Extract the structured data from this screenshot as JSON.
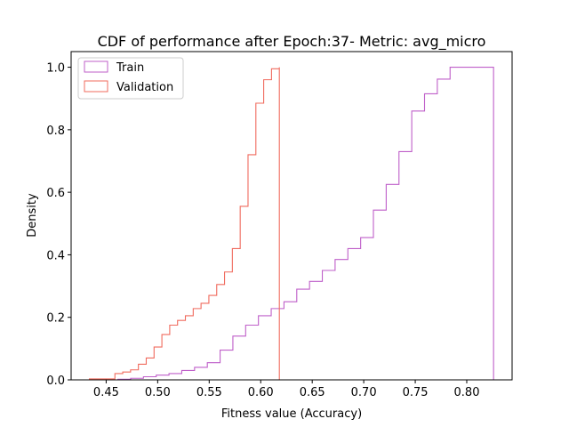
{
  "chart_data": {
    "type": "step",
    "title": "CDF of performance after Epoch:37- Metric: avg_micro",
    "xlabel": "Fitness value (Accuracy)",
    "ylabel": "Density",
    "xlim": [
      0.416,
      0.844
    ],
    "ylim": [
      0,
      1.05
    ],
    "x_ticks": [
      0.45,
      0.5,
      0.55,
      0.6,
      0.65,
      0.7,
      0.75,
      0.8
    ],
    "x_tick_labels": [
      "0.45",
      "0.50",
      "0.55",
      "0.60",
      "0.65",
      "0.70",
      "0.75",
      "0.80"
    ],
    "y_ticks": [
      0.0,
      0.2,
      0.4,
      0.6,
      0.8,
      1.0
    ],
    "y_tick_labels": [
      "0.0",
      "0.2",
      "0.4",
      "0.6",
      "0.8",
      "1.0"
    ],
    "grid": false,
    "legend_position": "top-left",
    "series": [
      {
        "name": "Train",
        "color": "#bf5fc9",
        "x": [
          0.449,
          0.4614,
          0.4738,
          0.4862,
          0.4986,
          0.511,
          0.5234,
          0.5358,
          0.5482,
          0.5606,
          0.573,
          0.5854,
          0.5978,
          0.6102,
          0.6226,
          0.635,
          0.6474,
          0.6598,
          0.6722,
          0.6846,
          0.697,
          0.7094,
          0.7218,
          0.7342,
          0.7466,
          0.759,
          0.7714,
          0.7838,
          0.7962,
          0.8086,
          0.821,
          0.826
        ],
        "y": [
          0.0,
          0.002,
          0.005,
          0.01,
          0.015,
          0.02,
          0.03,
          0.04,
          0.055,
          0.095,
          0.14,
          0.175,
          0.205,
          0.228,
          0.25,
          0.29,
          0.315,
          0.35,
          0.385,
          0.42,
          0.455,
          0.543,
          0.625,
          0.73,
          0.86,
          0.915,
          0.962,
          1.0,
          1.0,
          1.0,
          1.0,
          0.0
        ]
      },
      {
        "name": "Validation",
        "color": "#f06b5e",
        "x": [
          0.4337,
          0.4585,
          0.4661,
          0.4737,
          0.4813,
          0.4889,
          0.4965,
          0.5041,
          0.5117,
          0.5193,
          0.5269,
          0.5345,
          0.5421,
          0.5497,
          0.5573,
          0.5649,
          0.5725,
          0.5801,
          0.5877,
          0.5953,
          0.6029,
          0.6105,
          0.6181
        ],
        "y": [
          0.003,
          0.02,
          0.025,
          0.032,
          0.05,
          0.07,
          0.105,
          0.145,
          0.175,
          0.19,
          0.205,
          0.228,
          0.245,
          0.27,
          0.305,
          0.345,
          0.42,
          0.555,
          0.72,
          0.885,
          0.96,
          0.995,
          1.0
        ]
      }
    ]
  }
}
